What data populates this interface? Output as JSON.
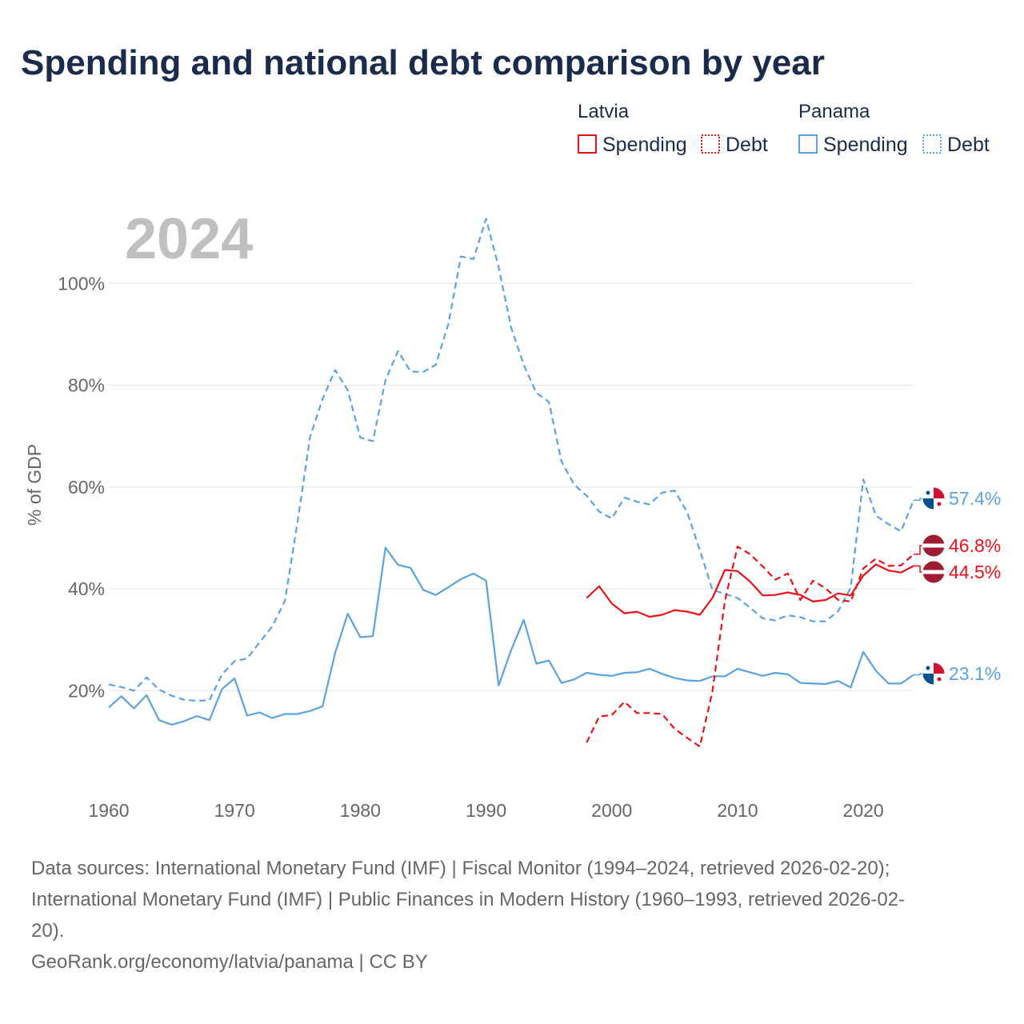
{
  "title": "Spending and national debt comparison by year",
  "big_year": "2024",
  "legend": {
    "groups": [
      {
        "country": "Latvia",
        "color": "#e8131a",
        "items": [
          {
            "label": "Spending",
            "style": "solid"
          },
          {
            "label": "Debt",
            "style": "dotted"
          }
        ]
      },
      {
        "country": "Panama",
        "color": "#5aa3e0",
        "items": [
          {
            "label": "Spending",
            "style": "solid"
          },
          {
            "label": "Debt",
            "style": "dotted"
          }
        ]
      }
    ]
  },
  "end_labels": [
    {
      "country": "Panama",
      "series": "Debt",
      "text": "57.4%",
      "value": 57.4,
      "color": "#5aa3e0"
    },
    {
      "country": "Latvia",
      "series": "Debt",
      "text": "46.8%",
      "value": 46.8,
      "color": "#e8131a"
    },
    {
      "country": "Latvia",
      "series": "Spending",
      "text": "44.5%",
      "value": 44.5,
      "color": "#e8131a"
    },
    {
      "country": "Panama",
      "series": "Spending",
      "text": "23.1%",
      "value": 23.1,
      "color": "#5aa3e0"
    }
  ],
  "sources": [
    "Data sources: International Monetary Fund (IMF) | Fiscal Monitor (1994–2024, retrieved 2026-02-20);",
    "International Monetary Fund (IMF) | Public Finances in Modern History (1960–1993, retrieved 2026-02-",
    "20).",
    "GeoRank.org/economy/latvia/panama | CC BY"
  ],
  "chart_data": {
    "type": "line",
    "title": "Spending and national debt comparison by year",
    "xlabel": "",
    "ylabel": "% of GDP",
    "xlim": [
      1960,
      2024
    ],
    "ylim": [
      0,
      115
    ],
    "x_ticks": [
      1960,
      1970,
      1980,
      1990,
      2000,
      2010,
      2020
    ],
    "x_tick_labels": [
      "1960",
      "1970",
      "1980",
      "1990",
      "2000",
      "2010",
      "2020"
    ],
    "y_ticks": [
      20,
      40,
      60,
      80,
      100
    ],
    "y_tick_labels": [
      "20%",
      "40%",
      "60%",
      "80%",
      "100%"
    ],
    "grid": true,
    "legend_position": "top-right",
    "series": [
      {
        "name": "Panama Debt",
        "country": "Panama",
        "kind": "Debt",
        "color": "#5aa3e0",
        "dash": "dashed",
        "start_year": 1960,
        "values": [
          21.2,
          20.7,
          20.0,
          22.6,
          20.2,
          19.0,
          18.2,
          18.0,
          18.1,
          23.2,
          25.8,
          26.3,
          29.5,
          32.6,
          37.6,
          53.0,
          69.8,
          77.3,
          83.0,
          79.0,
          69.7,
          69.0,
          81.0,
          86.7,
          82.7,
          82.6,
          84.0,
          92.0,
          105.3,
          104.8,
          112.7,
          103.2,
          91.3,
          84.0,
          78.5,
          76.7,
          65.0,
          60.5,
          58.3,
          55.2,
          53.8,
          57.9,
          57.1,
          56.6,
          58.9,
          59.3,
          55.0,
          47.6,
          39.8,
          39.0,
          38.2,
          36.3,
          34.2,
          33.8,
          34.8,
          34.4,
          33.6,
          33.6,
          35.6,
          40.2,
          61.5,
          54.4,
          52.7,
          51.3,
          57.4
        ]
      },
      {
        "name": "Panama Spending",
        "country": "Panama",
        "kind": "Spending",
        "color": "#5aa3e0",
        "dash": "solid",
        "start_year": 1960,
        "values": [
          16.7,
          18.9,
          16.5,
          19.1,
          14.2,
          13.3,
          14.0,
          15.0,
          14.2,
          20.3,
          22.4,
          15.1,
          15.7,
          14.6,
          15.4,
          15.4,
          16.0,
          16.9,
          27.4,
          35.1,
          30.5,
          30.7,
          48.1,
          44.7,
          44.1,
          39.8,
          38.8,
          40.3,
          41.9,
          43.0,
          41.6,
          21.0,
          28.0,
          33.9,
          25.3,
          25.9,
          21.5,
          22.2,
          23.5,
          23.1,
          22.9,
          23.5,
          23.6,
          24.3,
          23.3,
          22.5,
          22.0,
          21.9,
          22.8,
          22.8,
          24.3,
          23.6,
          22.9,
          23.5,
          23.2,
          21.5,
          21.4,
          21.3,
          21.9,
          20.6,
          27.6,
          23.9,
          21.4,
          21.4,
          23.1
        ]
      },
      {
        "name": "Latvia Spending",
        "country": "Latvia",
        "kind": "Spending",
        "color": "#e8131a",
        "dash": "solid",
        "start_year": 1998,
        "values": [
          38.2,
          40.5,
          37.1,
          35.2,
          35.5,
          34.5,
          34.9,
          35.8,
          35.5,
          34.9,
          38.2,
          43.7,
          43.5,
          41.4,
          38.7,
          38.8,
          39.3,
          38.8,
          37.5,
          37.8,
          39.1,
          38.7,
          42.6,
          44.8,
          43.6,
          43.2,
          44.5
        ]
      },
      {
        "name": "Latvia Debt",
        "country": "Latvia",
        "kind": "Debt",
        "color": "#e8131a",
        "dash": "dashed",
        "start_year": 1998,
        "values": [
          9.8,
          14.9,
          15.2,
          17.8,
          15.6,
          15.6,
          15.4,
          12.5,
          10.7,
          9.0,
          19.8,
          37.7,
          48.3,
          46.8,
          44.4,
          41.8,
          43.0,
          37.8,
          41.6,
          40.1,
          37.8,
          37.5,
          44.0,
          45.9,
          44.5,
          44.6,
          46.8
        ]
      }
    ]
  }
}
